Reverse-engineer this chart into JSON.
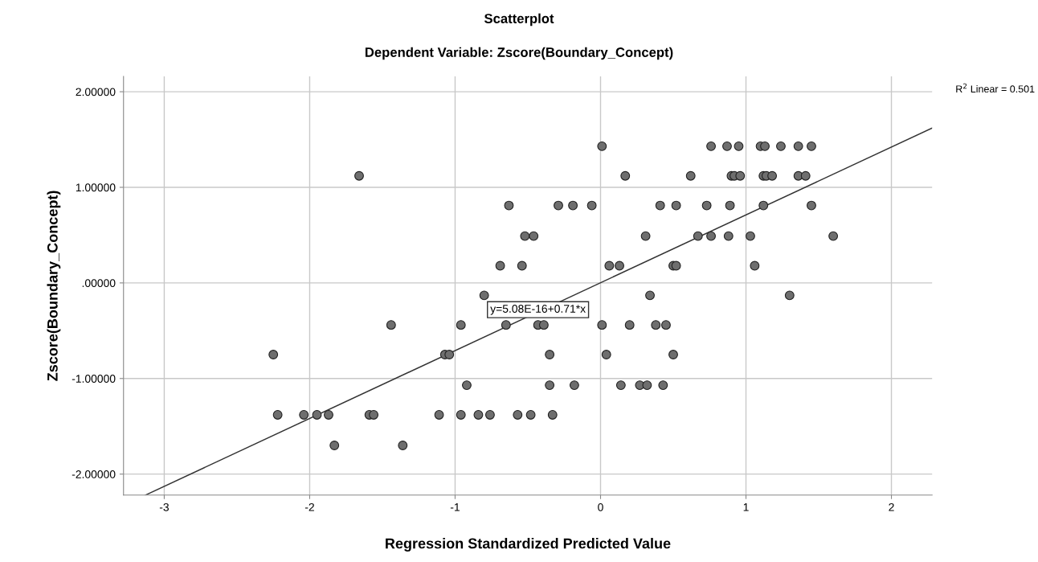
{
  "chart_data": {
    "type": "scatter",
    "title": "Scatterplot",
    "subtitle": "Dependent Variable: Zscore(Boundary_Concept)",
    "xlabel": "Regression Standardized Predicted Value",
    "ylabel": "Zscore(Boundary_Concept)",
    "series": [
      {
        "color": "#6e6e6e",
        "marker": "circle",
        "x": [
          0.01,
          0.76,
          0.87,
          0.95,
          1.1,
          1.13,
          1.24,
          1.36,
          1.45,
          -1.66,
          0.17,
          0.62,
          0.9,
          0.92,
          0.96,
          1.12,
          1.14,
          1.18,
          1.36,
          1.41,
          -0.63,
          -0.29,
          -0.19,
          -0.06,
          0.41,
          0.52,
          0.73,
          0.89,
          1.12,
          1.45,
          -0.52,
          -0.46,
          0.31,
          0.67,
          0.76,
          0.88,
          1.03,
          1.6,
          -0.69,
          -0.54,
          0.06,
          0.13,
          0.5,
          0.52,
          1.06,
          -0.8,
          0.34,
          1.3,
          -1.44,
          -0.96,
          -0.65,
          -0.43,
          -0.39,
          0.01,
          0.2,
          0.38,
          0.45,
          -2.25,
          -1.07,
          -1.04,
          -0.35,
          0.04,
          0.5,
          -0.92,
          -0.35,
          -0.18,
          0.14,
          0.27,
          0.32,
          0.43,
          -2.22,
          -2.04,
          -1.95,
          -1.87,
          -1.59,
          -1.56,
          -1.11,
          -0.96,
          -0.84,
          -0.76,
          -0.57,
          -0.48,
          -0.33,
          -1.83,
          -1.36
        ],
        "values": [
          1.43,
          1.43,
          1.43,
          1.43,
          1.43,
          1.43,
          1.43,
          1.43,
          1.43,
          1.12,
          1.12,
          1.12,
          1.12,
          1.12,
          1.12,
          1.12,
          1.12,
          1.12,
          1.12,
          1.12,
          0.81,
          0.81,
          0.81,
          0.81,
          0.81,
          0.81,
          0.81,
          0.81,
          0.81,
          0.81,
          0.49,
          0.49,
          0.49,
          0.49,
          0.49,
          0.49,
          0.49,
          0.49,
          0.18,
          0.18,
          0.18,
          0.18,
          0.18,
          0.18,
          0.18,
          -0.13,
          -0.13,
          -0.13,
          -0.44,
          -0.44,
          -0.44,
          -0.44,
          -0.44,
          -0.44,
          -0.44,
          -0.44,
          -0.44,
          -0.75,
          -0.75,
          -0.75,
          -0.75,
          -0.75,
          -0.75,
          -1.07,
          -1.07,
          -1.07,
          -1.07,
          -1.07,
          -1.07,
          -1.07,
          -1.38,
          -1.38,
          -1.38,
          -1.38,
          -1.38,
          -1.38,
          -1.38,
          -1.38,
          -1.38,
          -1.38,
          -1.38,
          -1.38,
          -1.38,
          -1.7,
          -1.7
        ]
      },
      {
        "type": "line",
        "color": "#333333",
        "x": [
          -3.13,
          2.28
        ],
        "values": [
          -2.22,
          1.62
        ]
      }
    ],
    "xlim": [
      -3.28,
      2.28
    ],
    "ylim": [
      -2.22,
      2.16
    ],
    "xticks": [
      -3,
      -2,
      -1,
      0,
      1,
      2
    ],
    "yticks": [
      {
        "value": 2,
        "label": "2.00000"
      },
      {
        "value": 1,
        "label": "1.00000"
      },
      {
        "value": 0,
        "label": ".00000"
      },
      {
        "value": -1,
        "label": "-1.00000"
      },
      {
        "value": -2,
        "label": "-2.00000"
      }
    ],
    "grid": true,
    "annotations": [
      {
        "text": "y=5.08E-16+0.71*x",
        "x": -0.43,
        "y": -0.28
      },
      "R$^{2}$ Linear = 0.501"
    ]
  }
}
